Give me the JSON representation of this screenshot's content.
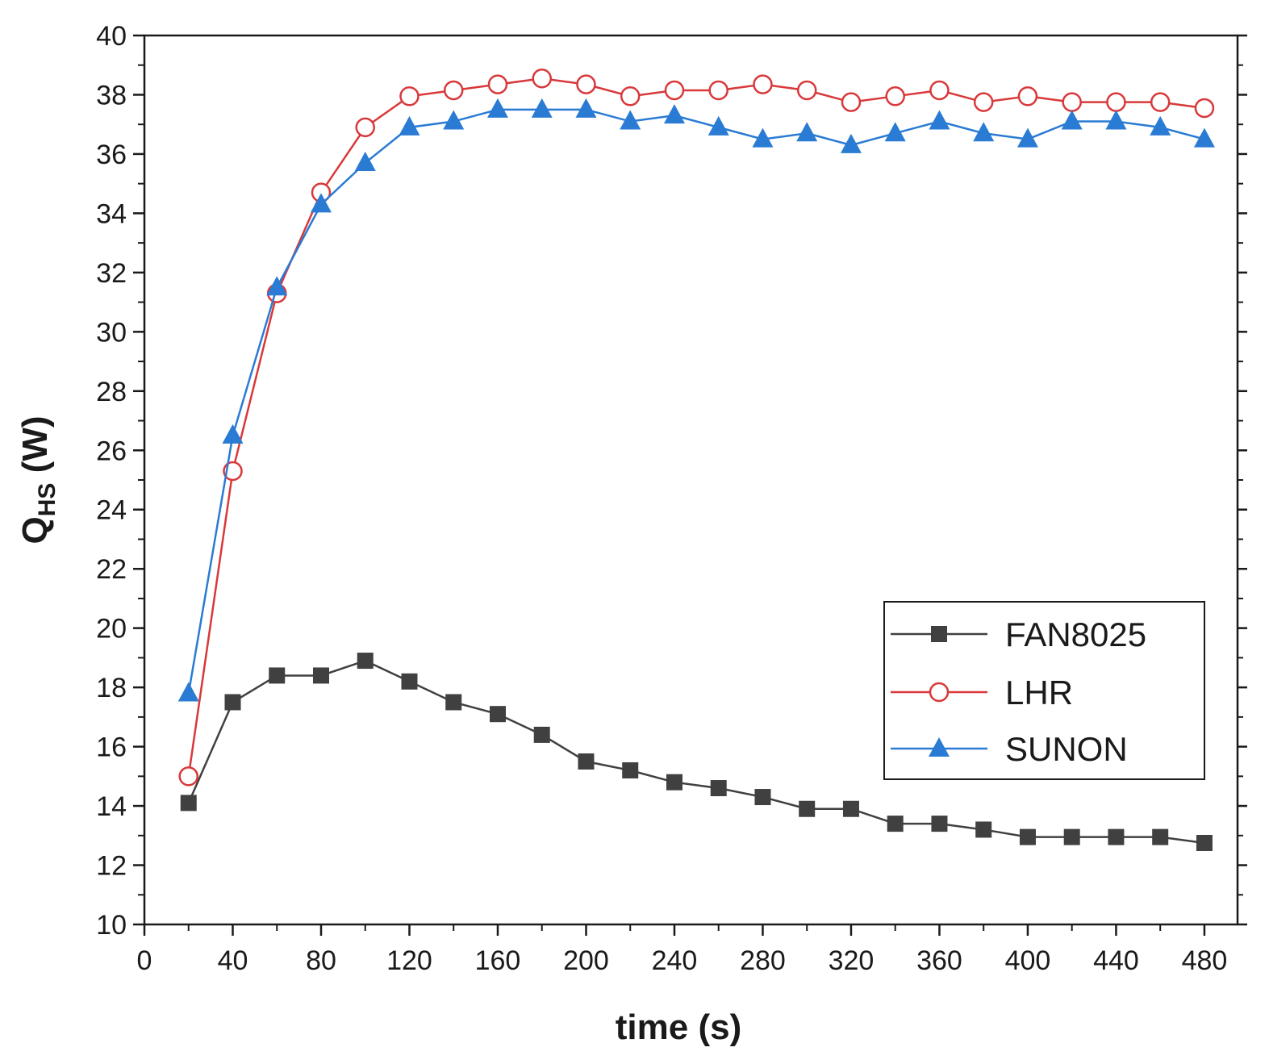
{
  "chart_data": {
    "type": "line",
    "title": "",
    "xlabel": "time (s)",
    "ylabel_main": "Q",
    "ylabel_sub": "HS",
    "ylabel_unit": " (W)",
    "xlim": [
      0,
      495
    ],
    "ylim": [
      10,
      40
    ],
    "xticks": [
      0,
      40,
      80,
      120,
      160,
      200,
      240,
      280,
      320,
      360,
      400,
      440,
      480
    ],
    "yticks": [
      10,
      12,
      14,
      16,
      18,
      20,
      22,
      24,
      26,
      28,
      30,
      32,
      34,
      36,
      38,
      40
    ],
    "x": [
      20,
      40,
      60,
      80,
      100,
      120,
      140,
      160,
      180,
      200,
      220,
      240,
      260,
      280,
      300,
      320,
      340,
      360,
      380,
      400,
      420,
      440,
      460,
      480
    ],
    "series": [
      {
        "name": "FAN8025",
        "color": "#404040",
        "marker": "square",
        "values": [
          14.1,
          17.5,
          18.4,
          18.4,
          18.9,
          18.2,
          17.5,
          17.1,
          16.4,
          15.5,
          15.2,
          14.8,
          14.6,
          14.3,
          13.9,
          13.9,
          13.4,
          13.4,
          13.2,
          12.95,
          12.95,
          12.95,
          12.95,
          12.75
        ]
      },
      {
        "name": "LHR",
        "color": "#d9383a",
        "marker": "circle-open",
        "values": [
          15.0,
          25.3,
          31.3,
          34.7,
          36.9,
          37.95,
          38.15,
          38.35,
          38.55,
          38.35,
          37.95,
          38.15,
          38.15,
          38.35,
          38.15,
          37.75,
          37.95,
          38.15,
          37.75,
          37.95,
          37.75,
          37.75,
          37.75,
          37.55
        ]
      },
      {
        "name": "SUNON",
        "color": "#2a7bd4",
        "marker": "triangle",
        "values": [
          17.8,
          26.5,
          31.5,
          34.3,
          35.7,
          36.9,
          37.1,
          37.5,
          37.5,
          37.5,
          37.1,
          37.3,
          36.9,
          36.5,
          36.7,
          36.3,
          36.7,
          37.1,
          36.7,
          36.5,
          37.1,
          37.1,
          36.9,
          36.5
        ]
      }
    ],
    "legend": {
      "position": "lower-right"
    }
  }
}
